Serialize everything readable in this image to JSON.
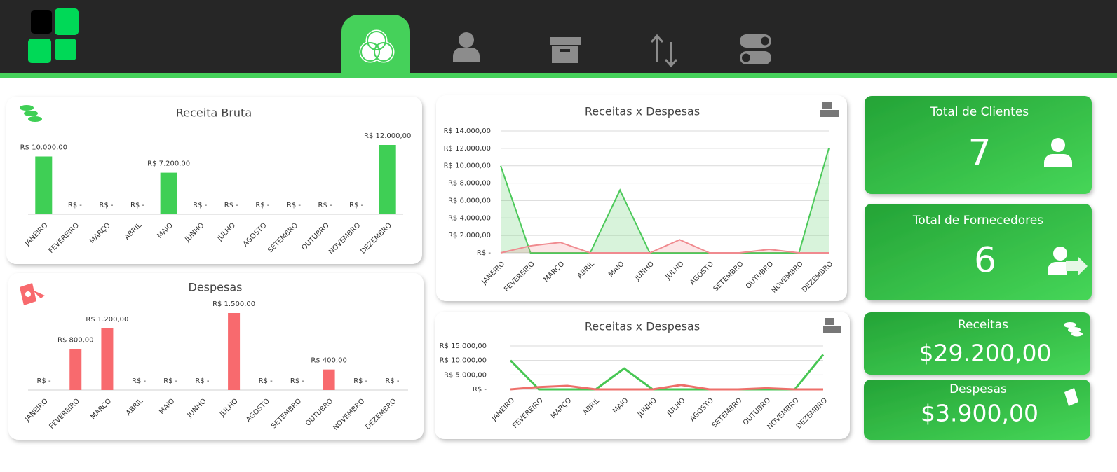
{
  "chart_data": [
    {
      "type": "bar",
      "title": "Receita Bruta",
      "color": "#3fcf55",
      "categories": [
        "JANEIRO",
        "FEVEREIRO",
        "MARÇO",
        "ABRIL",
        "MAIO",
        "JUNHO",
        "JULHO",
        "AGOSTO",
        "SETEMBRO",
        "OUTUBRO",
        "NOVEMBRO",
        "DEZEMBRO"
      ],
      "values": [
        10000,
        0,
        0,
        0,
        7200,
        0,
        0,
        0,
        0,
        0,
        0,
        12000
      ],
      "value_labels": [
        "R$ 10.000,00",
        "R$ -",
        "R$ -",
        "R$ -",
        "R$ 7.200,00",
        "R$ -",
        "R$ -",
        "R$ -",
        "R$ -",
        "R$ -",
        "R$ -",
        "R$ 12.000,00"
      ],
      "ylim": [
        0,
        12000
      ]
    },
    {
      "type": "bar",
      "title": "Despesas",
      "color": "#f86a6e",
      "categories": [
        "JANEIRO",
        "FEVEREIRO",
        "MARÇO",
        "ABRIL",
        "MAIO",
        "JUNHO",
        "JULHO",
        "AGOSTO",
        "SETEMBRO",
        "OUTUBRO",
        "NOVEMBRO",
        "DEZEMBRO"
      ],
      "values": [
        0,
        800,
        1200,
        0,
        0,
        0,
        1500,
        0,
        0,
        400,
        0,
        0
      ],
      "value_labels": [
        "R$ -",
        "R$ 800,00",
        "R$ 1.200,00",
        "R$ -",
        "R$ -",
        "R$ -",
        "R$ 1.500,00",
        "R$ -",
        "R$ -",
        "R$ 400,00",
        "R$ -",
        "R$ -"
      ],
      "ylim": [
        0,
        1500
      ]
    },
    {
      "type": "area",
      "title": "Receitas x Despesas",
      "grid": true,
      "categories": [
        "JANEIRO",
        "FEVEREIRO",
        "MARÇO",
        "ABRIL",
        "MAIO",
        "JUNHO",
        "JULHO",
        "AGOSTO",
        "SETEMBRO",
        "OUTUBRO",
        "NOVEMBRO",
        "DEZEMBRO"
      ],
      "series": [
        {
          "color": "#4cc95a",
          "values": [
            10000,
            0,
            0,
            0,
            7200,
            0,
            0,
            0,
            0,
            0,
            0,
            12000
          ]
        },
        {
          "color": "#f08a8f",
          "values": [
            0,
            800,
            1200,
            0,
            0,
            0,
            1500,
            0,
            0,
            400,
            0,
            0
          ]
        }
      ],
      "ylim": [
        0,
        14000
      ],
      "yticks": [
        {
          "value": 0,
          "label": "R$ -"
        },
        {
          "value": 2000,
          "label": "R$ 2.000,00"
        },
        {
          "value": 4000,
          "label": "R$ 4.000,00"
        },
        {
          "value": 6000,
          "label": "R$ 6.000,00"
        },
        {
          "value": 8000,
          "label": "R$ 8.000,00"
        },
        {
          "value": 10000,
          "label": "R$ 10.000,00"
        },
        {
          "value": 12000,
          "label": "R$ 12.000,00"
        },
        {
          "value": 14000,
          "label": "R$ 14.000,00"
        }
      ]
    },
    {
      "type": "line",
      "title": "Receitas x Despesas",
      "grid": true,
      "categories": [
        "JANEIRO",
        "FEVEREIRO",
        "MARÇO",
        "ABRIL",
        "MAIO",
        "JUNHO",
        "JULHO",
        "AGOSTO",
        "SETEMBRO",
        "OUTUBRO",
        "NOVEMBRO",
        "DEZEMBRO"
      ],
      "series": [
        {
          "color": "#47c653",
          "values": [
            10000,
            0,
            0,
            0,
            7200,
            0,
            0,
            0,
            0,
            0,
            0,
            12000
          ]
        },
        {
          "color": "#ee6f6a",
          "values": [
            0,
            800,
            1200,
            0,
            0,
            0,
            1500,
            0,
            0,
            400,
            0,
            0
          ]
        }
      ],
      "ylim": [
        0,
        15000
      ],
      "yticks": [
        {
          "value": 0,
          "label": "R$ -"
        },
        {
          "value": 5000,
          "label": "R$ 5.000,00"
        },
        {
          "value": 10000,
          "label": "R$ 10.000,00"
        },
        {
          "value": 15000,
          "label": "R$ 15.000,00"
        }
      ]
    }
  ],
  "kpis": [
    {
      "title": "Total de Clientes",
      "value": "7"
    },
    {
      "title": "Total de Fornecedores",
      "value": "6"
    },
    {
      "title": "Receitas",
      "value": "$29.200,00"
    },
    {
      "title": "Despesas",
      "value": "$3.900,00"
    }
  ]
}
